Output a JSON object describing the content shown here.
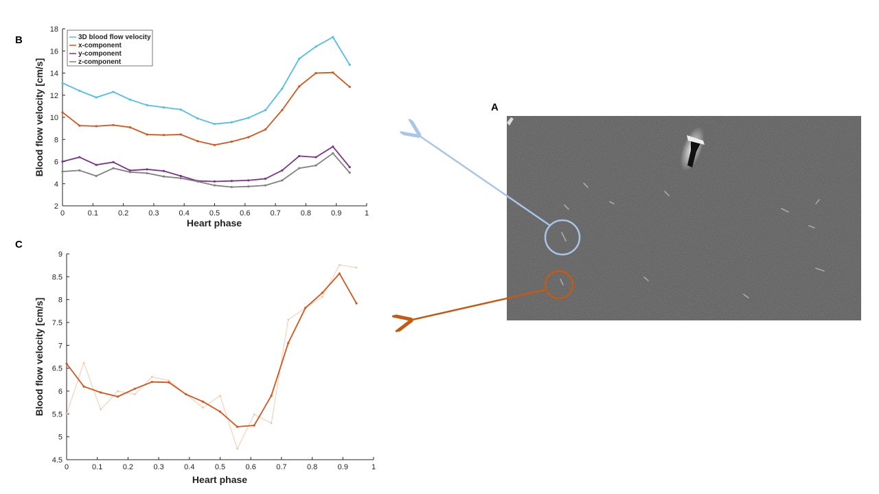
{
  "panels": {
    "a": "A",
    "b": "B",
    "c": "C"
  },
  "chart_data": [
    {
      "type": "line",
      "panel": "B",
      "xlabel": "Heart phase",
      "ylabel": "Blood flow velocity [cm/s]",
      "xlim": [
        0,
        1
      ],
      "ylim": [
        2,
        18
      ],
      "xticks": [
        "0",
        "0.1",
        "0.2",
        "0.3",
        "0.4",
        "0.5",
        "0.6",
        "0.7",
        "0.8",
        "0.9",
        "1"
      ],
      "yticks": [
        "2",
        "4",
        "6",
        "8",
        "10",
        "12",
        "14",
        "16",
        "18"
      ],
      "legend_position": "top-left",
      "x": [
        0,
        0.056,
        0.111,
        0.167,
        0.222,
        0.278,
        0.333,
        0.389,
        0.444,
        0.5,
        0.556,
        0.611,
        0.667,
        0.722,
        0.778,
        0.833,
        0.889,
        0.944
      ],
      "series": [
        {
          "name": "3D blood flow velocity",
          "color": "#4dbeee",
          "values": [
            13.1,
            12.4,
            11.8,
            12.3,
            11.6,
            11.1,
            10.9,
            10.7,
            9.9,
            9.4,
            9.55,
            9.95,
            10.65,
            12.6,
            15.3,
            16.4,
            17.25,
            14.75
          ]
        },
        {
          "name": "x-component",
          "color": "#d95319",
          "values": [
            10.45,
            9.25,
            9.2,
            9.3,
            9.1,
            8.45,
            8.4,
            8.45,
            7.85,
            7.5,
            7.8,
            8.2,
            8.9,
            10.65,
            12.8,
            14.0,
            14.05,
            12.75
          ]
        },
        {
          "name": "y-component",
          "color": "#7e2f8e",
          "values": [
            6.0,
            6.4,
            5.7,
            5.95,
            5.2,
            5.3,
            5.15,
            4.7,
            4.25,
            4.2,
            4.25,
            4.3,
            4.45,
            5.2,
            6.5,
            6.4,
            7.35,
            5.5
          ]
        },
        {
          "name": "z-component",
          "color": "#808080",
          "values": [
            5.1,
            5.2,
            4.7,
            5.4,
            5.05,
            4.95,
            4.65,
            4.5,
            4.2,
            3.85,
            3.7,
            3.75,
            3.85,
            4.3,
            5.4,
            5.65,
            6.75,
            5.0
          ]
        }
      ]
    },
    {
      "type": "line",
      "panel": "C",
      "xlabel": "Heart phase",
      "ylabel": "Blood flow velocity [cm/s]",
      "xlim": [
        0,
        1
      ],
      "ylim": [
        4.5,
        9
      ],
      "xticks": [
        "0",
        "0.1",
        "0.2",
        "0.3",
        "0.4",
        "0.5",
        "0.6",
        "0.7",
        "0.8",
        "0.9",
        "1"
      ],
      "yticks": [
        "4.5",
        "5",
        "5.5",
        "6",
        "6.5",
        "7",
        "7.5",
        "8",
        "8.5",
        "9"
      ],
      "x": [
        0,
        0.056,
        0.111,
        0.167,
        0.222,
        0.278,
        0.333,
        0.389,
        0.444,
        0.5,
        0.556,
        0.611,
        0.667,
        0.722,
        0.778,
        0.833,
        0.889,
        0.944
      ],
      "series": [
        {
          "color": "#d95319",
          "style": "smoothed",
          "values": [
            6.6,
            6.1,
            5.97,
            5.88,
            6.05,
            6.2,
            6.19,
            5.93,
            5.77,
            5.55,
            5.22,
            5.25,
            5.9,
            7.05,
            7.82,
            8.15,
            8.57,
            7.92
          ]
        },
        {
          "color": "#f5b48c",
          "style": "raw",
          "values": [
            5.5,
            6.62,
            5.6,
            6.0,
            5.93,
            6.31,
            6.23,
            5.93,
            5.64,
            5.9,
            4.74,
            5.49,
            5.3,
            7.56,
            7.82,
            8.06,
            8.76,
            8.7
          ]
        }
      ]
    }
  ],
  "image_a": {
    "background": "#5a5a5a",
    "circle_colors": {
      "upper": "#a9c6e8",
      "lower": "#c55a11"
    },
    "arrow_colors": {
      "to_b": "#a9c6e8",
      "to_c": "#c55a11"
    }
  }
}
